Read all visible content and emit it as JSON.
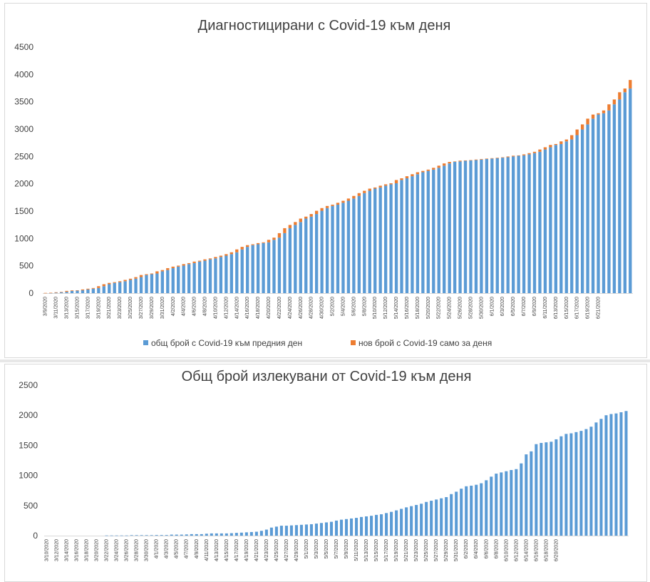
{
  "chart_data": [
    {
      "type": "bar",
      "stacked": true,
      "title": "Диагностицирани с Covid-19 към деня",
      "xlabel": "",
      "ylabel": "",
      "ylim": [
        0,
        4500
      ],
      "yticks": [
        0,
        500,
        1000,
        1500,
        2000,
        2500,
        3000,
        3500,
        4000,
        4500
      ],
      "grid": false,
      "legend": "bottom",
      "x_start": "3/9/2020",
      "x_end": "6/21/2020",
      "x_tick_labels": [
        "3/9/2020",
        "3/11/2020",
        "3/13/2020",
        "3/15/2020",
        "3/17/2020",
        "3/19/2020",
        "3/21/2020",
        "3/23/2020",
        "3/25/2020",
        "3/27/2020",
        "3/29/2020",
        "3/31/2020",
        "4/2/2020",
        "4/4/2020",
        "4/6/2020",
        "4/8/2020",
        "4/10/2020",
        "4/12/2020",
        "4/14/2020",
        "4/16/2020",
        "4/18/2020",
        "4/20/2020",
        "4/22/2020",
        "4/24/2020",
        "4/26/2020",
        "4/28/2020",
        "4/30/2020",
        "5/2/2020",
        "5/4/2020",
        "5/6/2020",
        "5/8/2020",
        "5/10/2020",
        "5/12/2020",
        "5/14/2020",
        "5/16/2020",
        "5/18/2020",
        "5/20/2020",
        "5/22/2020",
        "5/24/2020",
        "5/26/2020",
        "5/28/2020",
        "5/30/2020",
        "6/1/2020",
        "6/3/2020",
        "6/5/2020",
        "6/7/2020",
        "6/9/2020",
        "6/11/2020",
        "6/13/2020",
        "6/15/2020",
        "6/17/2020",
        "6/19/2020",
        "6/21/2020"
      ],
      "series": [
        {
          "name": "общ брой с Covid-19 към предния ден",
          "color": "#5b9bd5",
          "values": [
            0,
            4,
            7,
            16,
            23,
            41,
            51,
            52,
            67,
            81,
            94,
            127,
            163,
            187,
            201,
            218,
            242,
            264,
            293,
            331,
            346,
            359,
            399,
            422,
            457,
            485,
            503,
            531,
            549,
            577,
            593,
            618,
            635,
            661,
            685,
            713,
            747,
            800,
            846,
            878,
            894,
            915,
            929,
            975,
            1015,
            1097,
            1188,
            1247,
            1300,
            1363,
            1399,
            1447,
            1506,
            1555,
            1594,
            1618,
            1652,
            1689,
            1730,
            1778,
            1829,
            1872,
            1911,
            1932,
            1965,
            1990,
            2009,
            2069,
            2100,
            2138,
            2175,
            2211,
            2235,
            2259,
            2292,
            2331,
            2372,
            2400,
            2408,
            2423,
            2427,
            2433,
            2443,
            2453,
            2460,
            2468,
            2477,
            2485,
            2499,
            2513,
            2519,
            2538,
            2560,
            2585,
            2627,
            2668,
            2710,
            2727,
            2775,
            2810,
            2889,
            2993,
            3086,
            3191,
            3266,
            3290,
            3341,
            3453,
            3542,
            3674,
            3742
          ]
        },
        {
          "name": "нов брой с Covid-19 само за деня",
          "color": "#ed7d31",
          "values": [
            4,
            3,
            9,
            7,
            18,
            10,
            1,
            15,
            14,
            13,
            33,
            36,
            24,
            14,
            17,
            24,
            22,
            29,
            38,
            15,
            13,
            40,
            23,
            35,
            28,
            18,
            28,
            18,
            28,
            16,
            25,
            17,
            26,
            24,
            28,
            34,
            53,
            46,
            32,
            16,
            21,
            14,
            46,
            40,
            82,
            91,
            59,
            53,
            63,
            36,
            48,
            59,
            49,
            39,
            24,
            34,
            37,
            41,
            48,
            51,
            43,
            39,
            21,
            33,
            25,
            19,
            60,
            31,
            38,
            37,
            36,
            24,
            24,
            33,
            39,
            41,
            28,
            8,
            15,
            4,
            6,
            10,
            10,
            7,
            8,
            9,
            8,
            14,
            14,
            6,
            19,
            22,
            25,
            42,
            41,
            42,
            17,
            48,
            35,
            79,
            104,
            93,
            105,
            75,
            24,
            51,
            112,
            89,
            132,
            68,
            156
          ]
        }
      ]
    },
    {
      "type": "bar",
      "title": "Общ брой излекувани от Covid-19 към деня",
      "xlabel": "",
      "ylabel": "",
      "ylim": [
        0,
        2500
      ],
      "yticks": [
        0,
        500,
        1000,
        1500,
        2000,
        2500
      ],
      "grid": false,
      "legend": "none",
      "x_start": "3/10/2020",
      "x_end": "6/21/2020",
      "x_tick_labels": [
        "3/10/2020",
        "3/12/2020",
        "3/14/2020",
        "3/16/2020",
        "3/18/2020",
        "3/20/2020",
        "3/22/2020",
        "3/24/2020",
        "3/26/2020",
        "3/28/2020",
        "3/30/2020",
        "4/1/2020",
        "4/3/2020",
        "4/5/2020",
        "4/7/2020",
        "4/9/2020",
        "4/11/2020",
        "4/13/2020",
        "4/15/2020",
        "4/17/2020",
        "4/19/2020",
        "4/21/2020",
        "4/23/2020",
        "4/25/2020",
        "4/27/2020",
        "4/29/2020",
        "5/1/2020",
        "5/3/2020",
        "5/5/2020",
        "5/7/2020",
        "5/9/2020",
        "5/11/2020",
        "5/13/2020",
        "5/15/2020",
        "5/17/2020",
        "5/19/2020",
        "5/21/2020",
        "5/23/2020",
        "5/25/2020",
        "5/27/2020",
        "5/29/2020",
        "5/31/2020",
        "6/2/2020",
        "6/4/2020",
        "6/6/2020",
        "6/8/2020",
        "6/10/2020",
        "6/12/2020",
        "6/14/2020",
        "6/16/2020",
        "6/18/2020",
        "6/20/2020"
      ],
      "series": [
        {
          "name": "",
          "color": "#5b9bd5",
          "values": [
            0,
            0,
            0,
            0,
            0,
            0,
            0,
            0,
            0,
            0,
            0,
            0,
            3,
            3,
            3,
            3,
            3,
            8,
            8,
            8,
            8,
            8,
            10,
            10,
            10,
            17,
            17,
            17,
            20,
            25,
            25,
            25,
            32,
            37,
            37,
            37,
            37,
            41,
            46,
            50,
            55,
            60,
            65,
            80,
            100,
            134,
            150,
            165,
            165,
            170,
            175,
            180,
            185,
            190,
            200,
            210,
            220,
            230,
            250,
            265,
            275,
            285,
            295,
            310,
            320,
            330,
            345,
            355,
            375,
            395,
            420,
            445,
            470,
            490,
            510,
            530,
            560,
            580,
            600,
            620,
            640,
            690,
            730,
            780,
            820,
            830,
            845,
            870,
            920,
            980,
            1030,
            1050,
            1070,
            1090,
            1105,
            1200,
            1350,
            1400,
            1520,
            1540,
            1550,
            1560,
            1600,
            1650,
            1690,
            1700,
            1720,
            1740,
            1770,
            1810,
            1880,
            1940,
            2000,
            2020,
            2030,
            2050,
            2070
          ]
        }
      ]
    }
  ]
}
